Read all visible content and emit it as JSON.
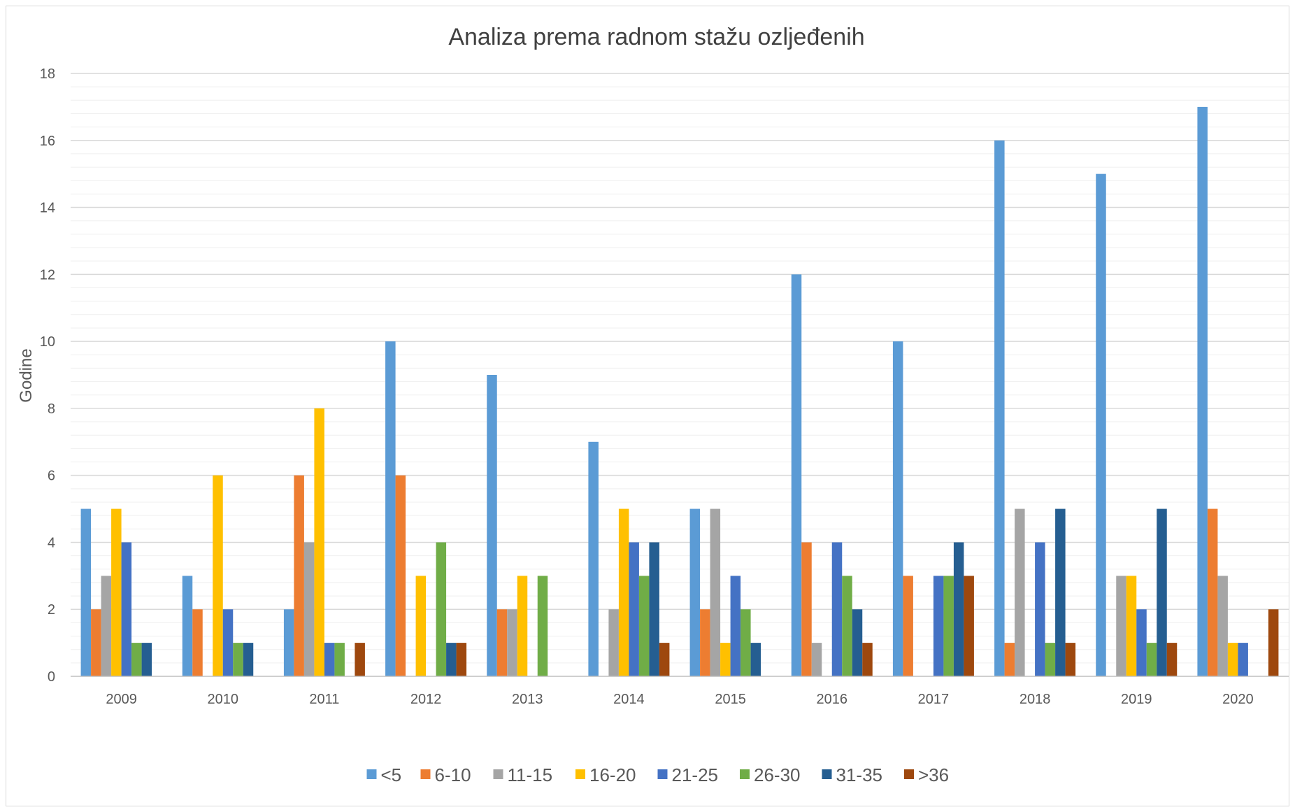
{
  "chart_data": {
    "type": "bar",
    "title": "Analiza prema radnom stažu ozljeđenih",
    "xlabel": "",
    "ylabel": "Godine",
    "ylim": [
      0,
      18
    ],
    "y_major_step": 2,
    "y_minor_step": 0.4,
    "grid": true,
    "legend_position": "bottom",
    "categories": [
      "2009",
      "2010",
      "2011",
      "2012",
      "2013",
      "2014",
      "2015",
      "2016",
      "2017",
      "2018",
      "2019",
      "2020"
    ],
    "series": [
      {
        "name": "<5",
        "color": "#5b9bd5",
        "values": [
          5,
          3,
          2,
          10,
          9,
          7,
          5,
          12,
          10,
          16,
          15,
          17
        ]
      },
      {
        "name": "6-10",
        "color": "#ed7d31",
        "values": [
          2,
          2,
          6,
          6,
          2,
          0,
          2,
          4,
          3,
          1,
          0,
          5
        ]
      },
      {
        "name": "11-15",
        "color": "#a5a5a5",
        "values": [
          3,
          0,
          4,
          0,
          2,
          2,
          5,
          1,
          0,
          5,
          3,
          3
        ]
      },
      {
        "name": "16-20",
        "color": "#ffc000",
        "values": [
          5,
          6,
          8,
          3,
          3,
          5,
          1,
          0,
          0,
          0,
          3,
          1
        ]
      },
      {
        "name": "21-25",
        "color": "#4472c4",
        "values": [
          4,
          2,
          1,
          0,
          0,
          4,
          3,
          4,
          3,
          4,
          2,
          1
        ]
      },
      {
        "name": "26-30",
        "color": "#70ad47",
        "values": [
          1,
          1,
          1,
          4,
          3,
          3,
          2,
          3,
          3,
          1,
          1,
          0
        ]
      },
      {
        "name": "31-35",
        "color": "#255e91",
        "values": [
          1,
          1,
          0,
          1,
          0,
          4,
          1,
          2,
          4,
          5,
          5,
          0
        ]
      },
      {
        "name": ">36",
        "color": "#9e480e",
        "values": [
          0,
          0,
          1,
          1,
          0,
          1,
          0,
          1,
          3,
          1,
          1,
          2
        ]
      }
    ]
  }
}
